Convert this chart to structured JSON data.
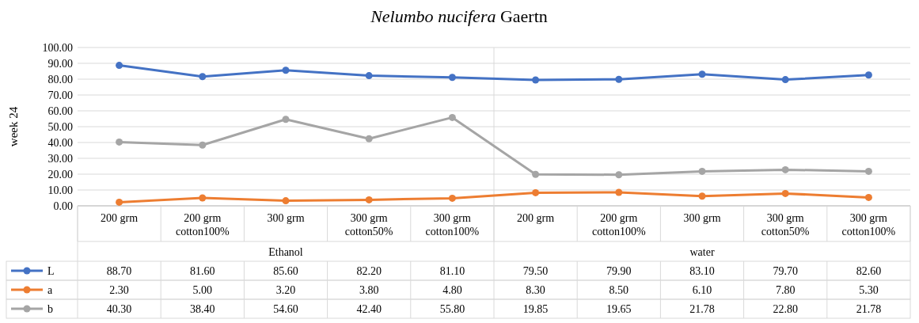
{
  "chart_data": {
    "type": "line",
    "title": "Nelumbo nucifera Gaertn",
    "ylabel": "week 24",
    "categories": [
      "200 grm",
      "200 grm cotton100%",
      "300 grm",
      "300 grm cotton50%",
      "300 grm cotton100%",
      "200 grm",
      "200 grm cotton100%",
      "300 grm",
      "300 grm cotton50%",
      "300 grm cotton100%"
    ],
    "annotations": [
      "Ethanol",
      "water"
    ],
    "series": [
      {
        "name": "L",
        "color": "#4472c4",
        "values": [
          88.7,
          81.6,
          85.6,
          82.2,
          81.1,
          79.5,
          79.9,
          83.1,
          79.7,
          82.6
        ],
        "value_labels": [
          "88.70",
          "81.60",
          "85.60",
          "82.20",
          "81.10",
          "79.50",
          "79.90",
          "83.10",
          "79.70",
          "82.60"
        ]
      },
      {
        "name": "a",
        "color": "#ed7d31",
        "values": [
          2.3,
          5.0,
          3.2,
          3.8,
          4.8,
          8.3,
          8.5,
          6.1,
          7.8,
          5.3
        ],
        "value_labels": [
          "2.30",
          "5.00",
          "3.20",
          "3.80",
          "4.80",
          "8.30",
          "8.50",
          "6.10",
          "7.80",
          "5.30"
        ]
      },
      {
        "name": "b",
        "color": "#a5a5a5",
        "values": [
          40.3,
          38.4,
          54.6,
          42.4,
          55.8,
          19.85,
          19.65,
          21.78,
          22.8,
          21.78
        ],
        "value_labels": [
          "40.30",
          "38.40",
          "54.60",
          "42.40",
          "55.80",
          "19.85",
          "19.65",
          "21.78",
          "22.80",
          "21.78"
        ]
      }
    ],
    "ylim": [
      0,
      100
    ],
    "yticks": [
      {
        "value": 0,
        "label": "0.00"
      },
      {
        "value": 10,
        "label": "10.00"
      },
      {
        "value": 20,
        "label": "20.00"
      },
      {
        "value": 30,
        "label": "30.00"
      },
      {
        "value": 40,
        "label": "40.00"
      },
      {
        "value": 50,
        "label": "50.00"
      },
      {
        "value": 60,
        "label": "60.00"
      },
      {
        "value": 70,
        "label": "70.00"
      },
      {
        "value": 80,
        "label": "80.00"
      },
      {
        "value": 90,
        "label": "90.00"
      },
      {
        "value": 100,
        "label": "100.00"
      }
    ],
    "grid": "y",
    "legend": "bottom",
    "marker": "circle",
    "line_style": "solid"
  }
}
